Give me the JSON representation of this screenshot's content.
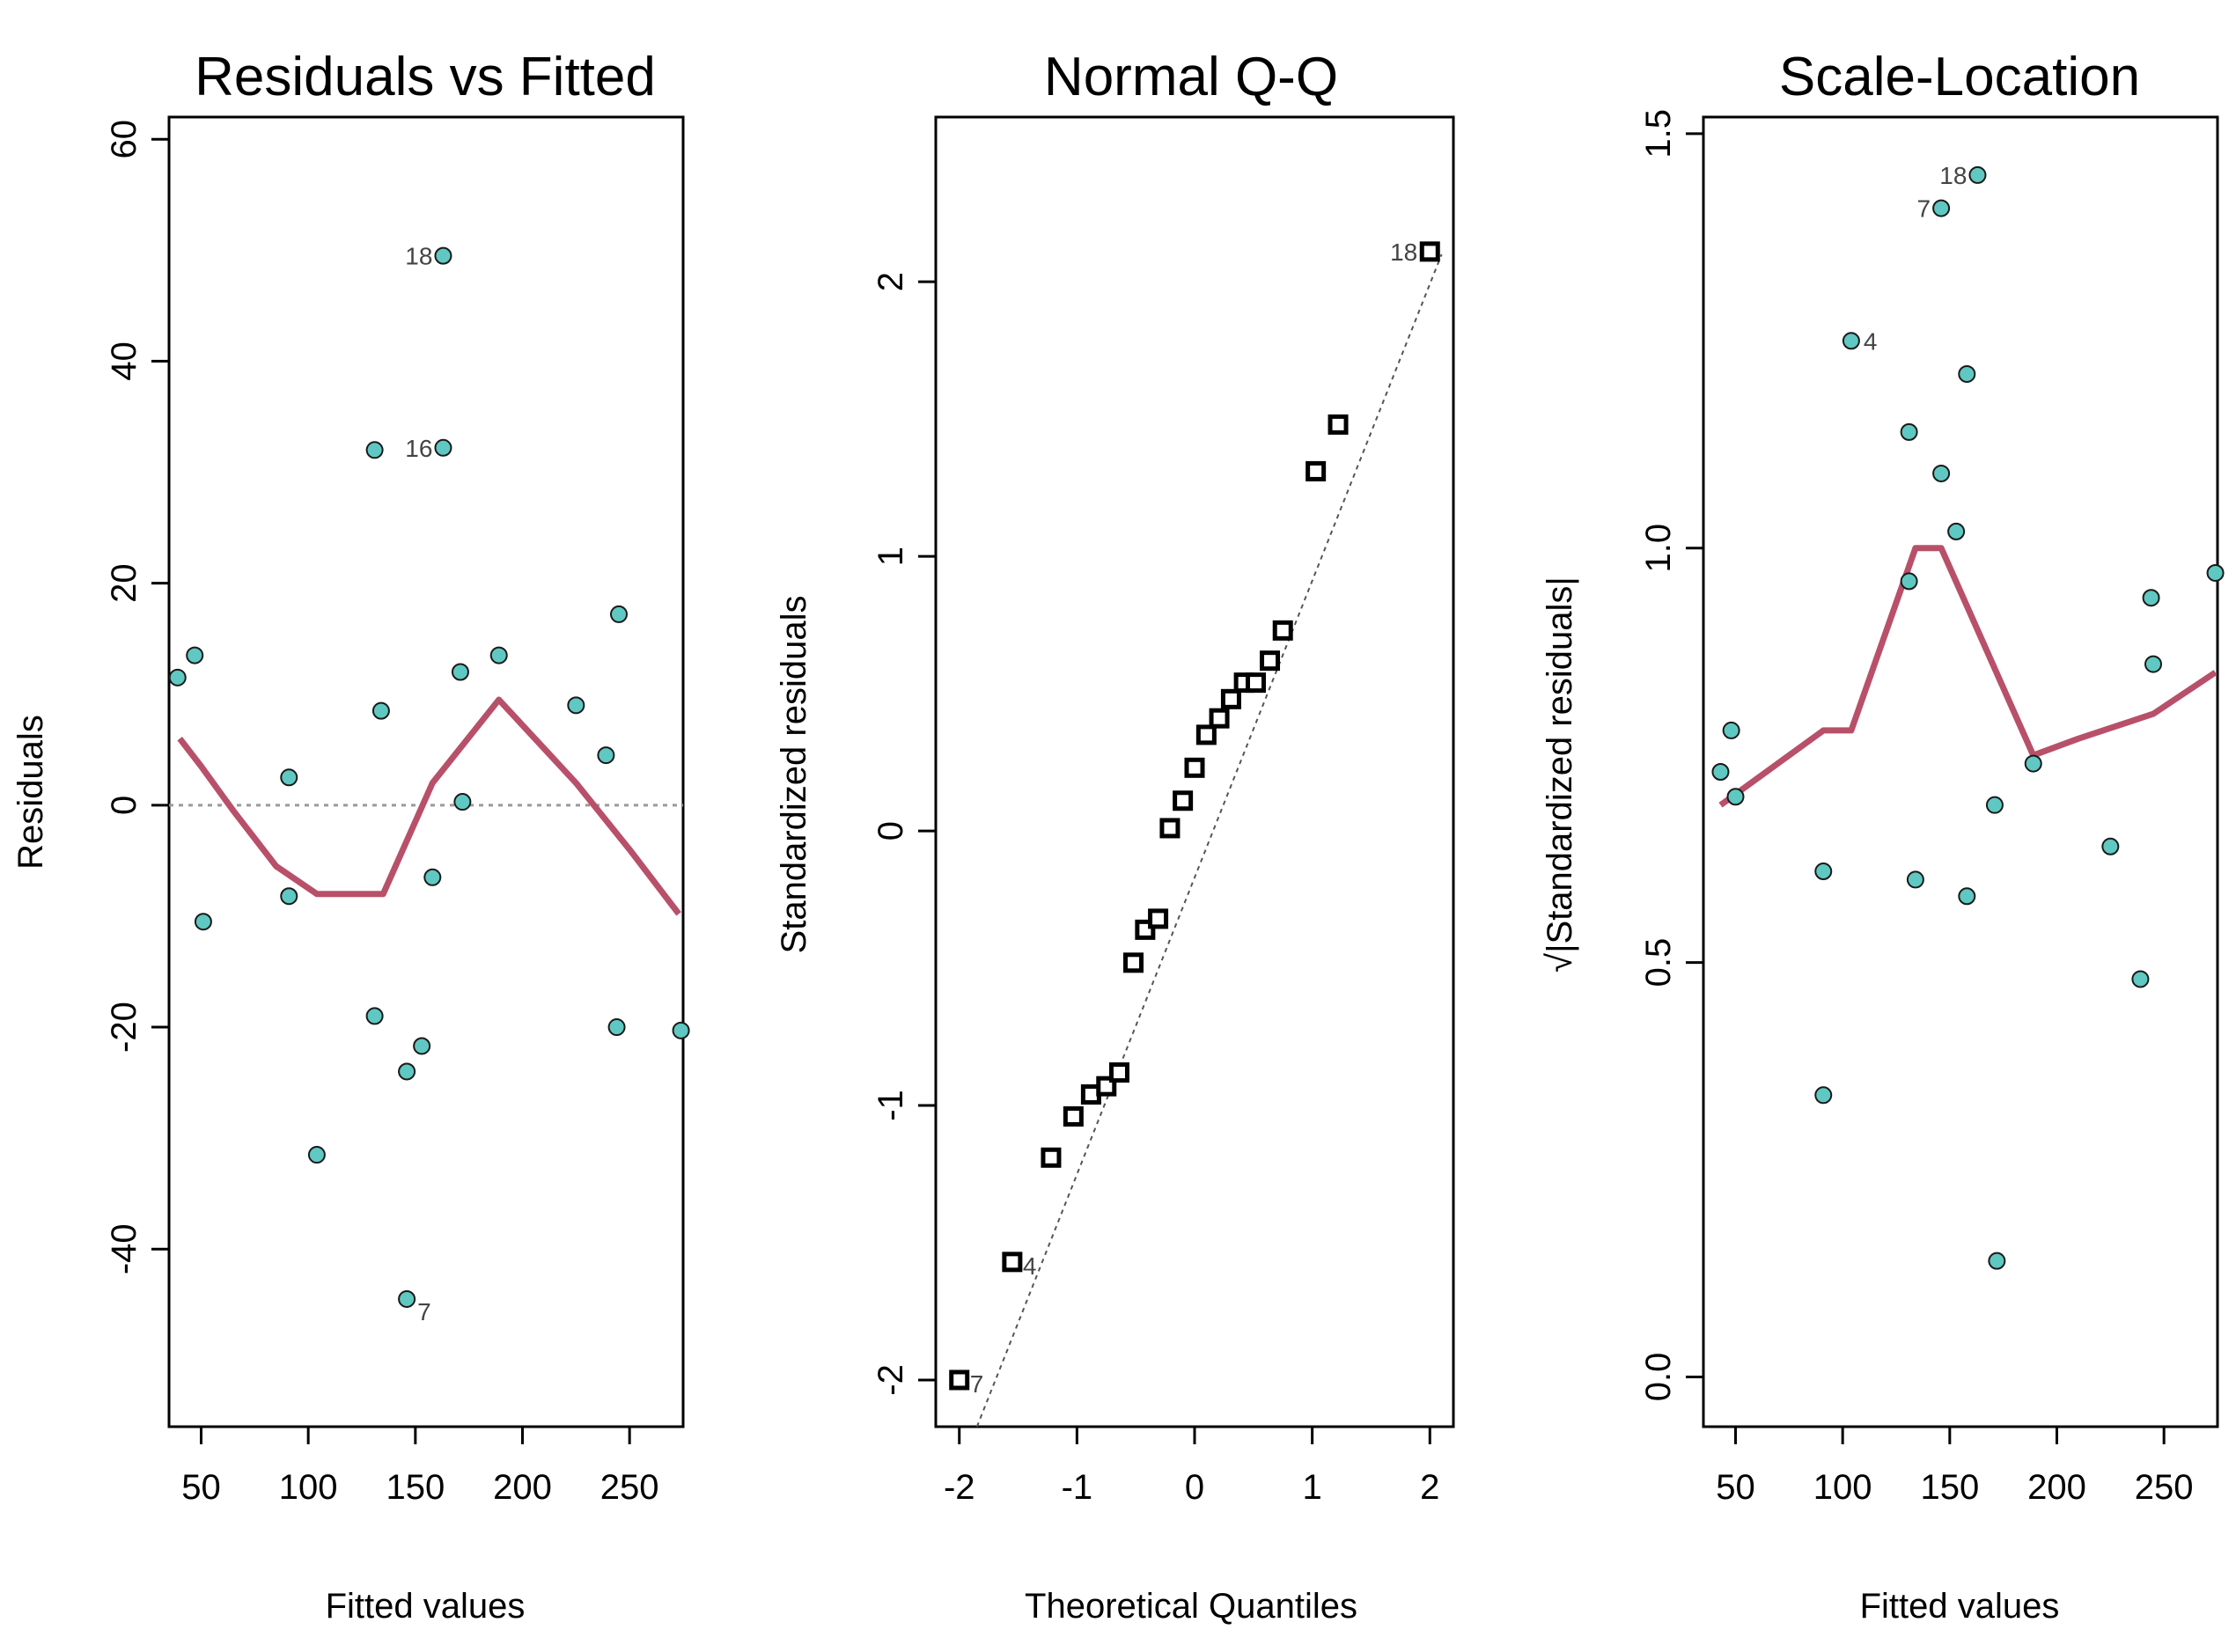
{
  "colors": {
    "point_fill": "#5fc8c2",
    "point_stroke": "#1a1a1a",
    "smooth": "#b8506a",
    "refline": "#9a9a9a",
    "axis": "#000000"
  },
  "chart_data": [
    {
      "id": "resid-fitted",
      "type": "scatter",
      "title": "Residuals vs Fitted",
      "xlabel": "Fitted values",
      "ylabel": "Residuals",
      "xlim": [
        35,
        275
      ],
      "ylim": [
        -56,
        62
      ],
      "xticks": [
        50,
        100,
        150,
        200,
        250
      ],
      "yticks": [
        -40,
        -20,
        0,
        20,
        40,
        60
      ],
      "marker": "circle",
      "reference_line": {
        "y": 0,
        "style": "dotted"
      },
      "points": [
        {
          "x": 39,
          "y": 11.5
        },
        {
          "x": 47,
          "y": 13.5
        },
        {
          "x": 51,
          "y": -10.5
        },
        {
          "x": 91,
          "y": 2.5
        },
        {
          "x": 91,
          "y": -8.2
        },
        {
          "x": 104,
          "y": -31.5
        },
        {
          "x": 131,
          "y": 32
        },
        {
          "x": 131,
          "y": -19
        },
        {
          "x": 134,
          "y": 8.5
        },
        {
          "x": 146,
          "y": -24
        },
        {
          "x": 146,
          "y": -44.5,
          "label": "7"
        },
        {
          "x": 153,
          "y": -21.7
        },
        {
          "x": 158,
          "y": -6.5
        },
        {
          "x": 163,
          "y": 49.5,
          "label": "18"
        },
        {
          "x": 163,
          "y": 32.2,
          "label": "16"
        },
        {
          "x": 171,
          "y": 12
        },
        {
          "x": 172,
          "y": 0.3
        },
        {
          "x": 189,
          "y": 13.5
        },
        {
          "x": 225,
          "y": 9
        },
        {
          "x": 239,
          "y": 4.5
        },
        {
          "x": 244,
          "y": -20
        },
        {
          "x": 245,
          "y": 17.2
        },
        {
          "x": 274,
          "y": -20.3
        }
      ],
      "smooth": [
        {
          "x": 40,
          "y": 6
        },
        {
          "x": 50,
          "y": 3.5
        },
        {
          "x": 65,
          "y": -0.5
        },
        {
          "x": 85,
          "y": -5.5
        },
        {
          "x": 104,
          "y": -8
        },
        {
          "x": 135,
          "y": -8
        },
        {
          "x": 158,
          "y": 2
        },
        {
          "x": 189,
          "y": 9.5
        },
        {
          "x": 225,
          "y": 2
        },
        {
          "x": 250,
          "y": -4
        },
        {
          "x": 273,
          "y": -9.8
        }
      ]
    },
    {
      "id": "normal-qq",
      "type": "scatter",
      "title": "Normal Q-Q",
      "xlabel": "Theoretical Quantiles",
      "ylabel": "Standardized residuals",
      "xlim": [
        -2.2,
        2.2
      ],
      "ylim": [
        -2.17,
        2.6
      ],
      "xticks": [
        -2,
        -1,
        0,
        1,
        2
      ],
      "yticks": [
        -2,
        -1,
        0,
        1,
        2
      ],
      "marker": "square",
      "reference_line": {
        "from": [
          -1.85,
          -2.17
        ],
        "to": [
          2.1,
          2.1
        ],
        "style": "dotted"
      },
      "points": [
        {
          "x": -2.0,
          "y": -2.0,
          "label": "7"
        },
        {
          "x": -1.55,
          "y": -1.57,
          "label": "4"
        },
        {
          "x": -1.22,
          "y": -1.19
        },
        {
          "x": -1.03,
          "y": -1.04
        },
        {
          "x": -0.88,
          "y": -0.96
        },
        {
          "x": -0.75,
          "y": -0.93
        },
        {
          "x": -0.64,
          "y": -0.88
        },
        {
          "x": -0.52,
          "y": -0.48
        },
        {
          "x": -0.42,
          "y": -0.36
        },
        {
          "x": -0.31,
          "y": -0.32
        },
        {
          "x": -0.21,
          "y": 0.01
        },
        {
          "x": -0.1,
          "y": 0.11
        },
        {
          "x": 0.0,
          "y": 0.23
        },
        {
          "x": 0.1,
          "y": 0.35
        },
        {
          "x": 0.21,
          "y": 0.41
        },
        {
          "x": 0.31,
          "y": 0.48
        },
        {
          "x": 0.42,
          "y": 0.54
        },
        {
          "x": 0.52,
          "y": 0.54
        },
        {
          "x": 0.64,
          "y": 0.62
        },
        {
          "x": 0.75,
          "y": 0.73
        },
        {
          "x": 1.03,
          "y": 1.31
        },
        {
          "x": 1.22,
          "y": 1.48
        },
        {
          "x": 2.0,
          "y": 2.11,
          "label": "18"
        }
      ]
    },
    {
      "id": "scale-location",
      "type": "scatter",
      "title": "Scale-Location",
      "xlabel": "Fitted values",
      "ylabel": "√|Standardized residuals|",
      "xlim": [
        35,
        275
      ],
      "ylim": [
        -0.06,
        1.52
      ],
      "xticks": [
        50,
        100,
        150,
        200,
        250
      ],
      "yticks": [
        0.0,
        0.5,
        1.0,
        1.5
      ],
      "ytick_labels": [
        "0.0",
        "0.5",
        "1.0",
        "1.5"
      ],
      "marker": "circle",
      "points": [
        {
          "x": 43,
          "y": 0.73
        },
        {
          "x": 48,
          "y": 0.78
        },
        {
          "x": 50,
          "y": 0.7
        },
        {
          "x": 91,
          "y": 0.61
        },
        {
          "x": 91,
          "y": 0.34
        },
        {
          "x": 104,
          "y": 1.25,
          "label": "4"
        },
        {
          "x": 131,
          "y": 1.14
        },
        {
          "x": 131,
          "y": 0.96
        },
        {
          "x": 134,
          "y": 0.6
        },
        {
          "x": 146,
          "y": 1.41,
          "label": "7"
        },
        {
          "x": 146,
          "y": 1.09
        },
        {
          "x": 153,
          "y": 1.02
        },
        {
          "x": 158,
          "y": 0.58
        },
        {
          "x": 158,
          "y": 1.21
        },
        {
          "x": 163,
          "y": 1.45,
          "label": "18"
        },
        {
          "x": 171,
          "y": 0.69
        },
        {
          "x": 172,
          "y": 0.14
        },
        {
          "x": 189,
          "y": 0.74
        },
        {
          "x": 225,
          "y": 0.64
        },
        {
          "x": 239,
          "y": 0.48
        },
        {
          "x": 244,
          "y": 0.94
        },
        {
          "x": 245,
          "y": 0.86
        },
        {
          "x": 274,
          "y": 0.97
        }
      ],
      "smooth": [
        {
          "x": 43,
          "y": 0.69
        },
        {
          "x": 91,
          "y": 0.78
        },
        {
          "x": 104,
          "y": 0.78
        },
        {
          "x": 134,
          "y": 1.0
        },
        {
          "x": 146,
          "y": 1.0
        },
        {
          "x": 189,
          "y": 0.75
        },
        {
          "x": 210,
          "y": 0.77
        },
        {
          "x": 245,
          "y": 0.8
        },
        {
          "x": 274,
          "y": 0.85
        }
      ]
    }
  ]
}
